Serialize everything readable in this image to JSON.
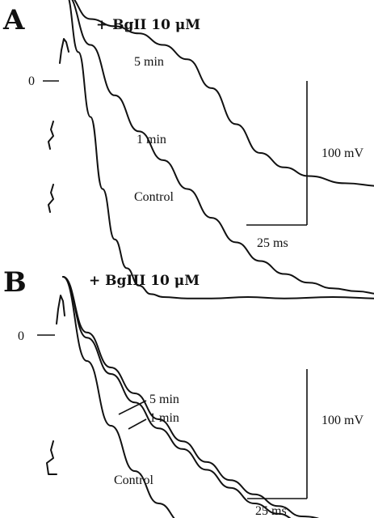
{
  "chart_data": [
    {
      "type": "line",
      "panel": "A",
      "title": "+ BgII 10 μM",
      "zero_label": "0",
      "scale_voltage": "100 mV",
      "scale_time": "25 ms",
      "series": [
        {
          "name": "Control",
          "x": [
            0,
            5,
            10,
            15,
            20,
            25,
            30,
            35,
            40,
            50,
            60,
            75,
            90,
            110,
            130
          ],
          "y": [
            60,
            20,
            -25,
            -75,
            -110,
            -130,
            -142,
            -148,
            -150,
            -151,
            -151,
            -150,
            -151,
            -150,
            -151
          ]
        },
        {
          "name": "1 min",
          "x": [
            0,
            10,
            20,
            30,
            40,
            50,
            60,
            70,
            80,
            90,
            100,
            110,
            120,
            130,
            140
          ],
          "y": [
            60,
            25,
            -10,
            -35,
            -55,
            -75,
            -95,
            -112,
            -125,
            -134,
            -140,
            -144,
            -146,
            -148,
            -148
          ]
        },
        {
          "name": "5 min",
          "x": [
            0,
            10,
            20,
            30,
            40,
            50,
            60,
            70,
            80,
            90,
            100,
            115,
            130,
            145,
            160
          ],
          "y": [
            60,
            43,
            38,
            33,
            25,
            15,
            -5,
            -30,
            -50,
            -60,
            -66,
            -71,
            -73,
            -74,
            -74
          ]
        }
      ]
    },
    {
      "type": "line",
      "panel": "B",
      "title": "+ BgIII 10 μM",
      "zero_label": "0",
      "scale_voltage": "100 mV",
      "scale_time": "25 ms",
      "series": [
        {
          "name": "Control",
          "x": [
            0,
            10,
            20,
            30,
            40,
            50,
            60,
            70,
            80,
            90,
            100,
            120,
            140,
            160,
            180
          ],
          "y": [
            45,
            -20,
            -70,
            -105,
            -130,
            -145,
            -152,
            -156,
            -158,
            -160,
            -160,
            -160,
            -159,
            -160,
            -159
          ]
        },
        {
          "name": "1 min",
          "x": [
            0,
            10,
            20,
            30,
            40,
            50,
            60,
            70,
            80,
            90,
            100,
            120,
            140,
            160,
            180
          ],
          "y": [
            45,
            -2,
            -30,
            -52,
            -72,
            -88,
            -104,
            -118,
            -130,
            -138,
            -145,
            -152,
            -155,
            -156,
            -156
          ]
        },
        {
          "name": "5 min",
          "x": [
            0,
            10,
            20,
            30,
            40,
            50,
            60,
            70,
            80,
            90,
            100,
            120,
            140,
            160,
            180
          ],
          "y": [
            45,
            2,
            -25,
            -45,
            -65,
            -82,
            -98,
            -112,
            -123,
            -132,
            -140,
            -148,
            -152,
            -153,
            -153
          ]
        }
      ]
    }
  ]
}
